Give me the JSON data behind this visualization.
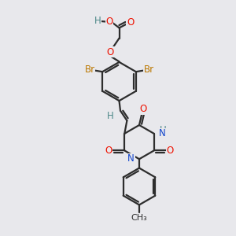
{
  "background_color": "#e8e8ec",
  "bond_color": "#2d2d2d",
  "oxygen_color": "#ee1100",
  "nitrogen_color": "#1144cc",
  "bromine_color": "#bb7700",
  "hydrogen_color": "#4d8888",
  "line_width": 1.6,
  "figsize": [
    3.0,
    3.0
  ],
  "dpi": 100,
  "xlim": [
    0,
    10
  ],
  "ylim": [
    0,
    10
  ]
}
